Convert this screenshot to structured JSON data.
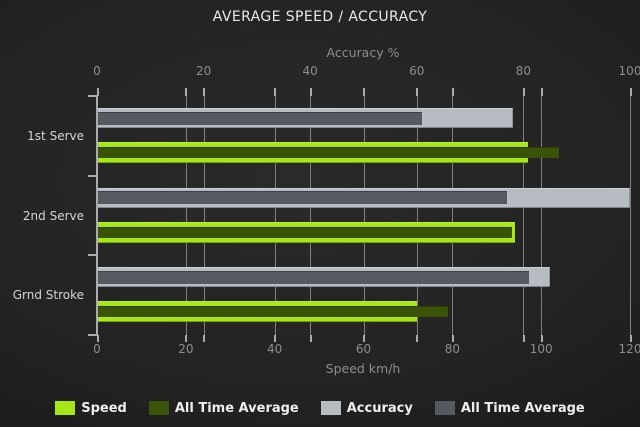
{
  "title": "AVERAGE SPEED / ACCURACY",
  "chart_data": {
    "type": "bar",
    "orientation": "horizontal",
    "grid": true,
    "legend_position": "bottom",
    "categories": [
      "1st Serve",
      "2nd Serve",
      "Grnd Stroke"
    ],
    "axes": {
      "top": {
        "label": "Accuracy %",
        "min": 0,
        "max": 100,
        "ticks": [
          0,
          20,
          40,
          60,
          80,
          100
        ]
      },
      "bottom": {
        "label": "Speed km/h",
        "min": 0,
        "max": 120,
        "ticks": [
          0,
          20,
          40,
          60,
          80,
          100,
          120
        ]
      }
    },
    "series": [
      {
        "name": "Speed",
        "axis": "bottom",
        "color": "#a6e716",
        "values": [
          97,
          94,
          72
        ]
      },
      {
        "name": "All Time Average",
        "axis": "bottom",
        "color": "#3a5306",
        "values": [
          104,
          93.5,
          79
        ]
      },
      {
        "name": "Accuracy",
        "axis": "top",
        "color": "#b6bcc2",
        "values": [
          78,
          100,
          85
        ]
      },
      {
        "name": "All Time Average",
        "axis": "top",
        "color": "#545a60",
        "values": [
          61,
          77,
          81
        ]
      }
    ],
    "colors": {
      "gridline": "#7f7f7f",
      "axis_text": "#8d8d8d",
      "category_text": "#d4d4d4",
      "title_text": "#e9e9e9",
      "background": "#1e1e1e"
    }
  }
}
